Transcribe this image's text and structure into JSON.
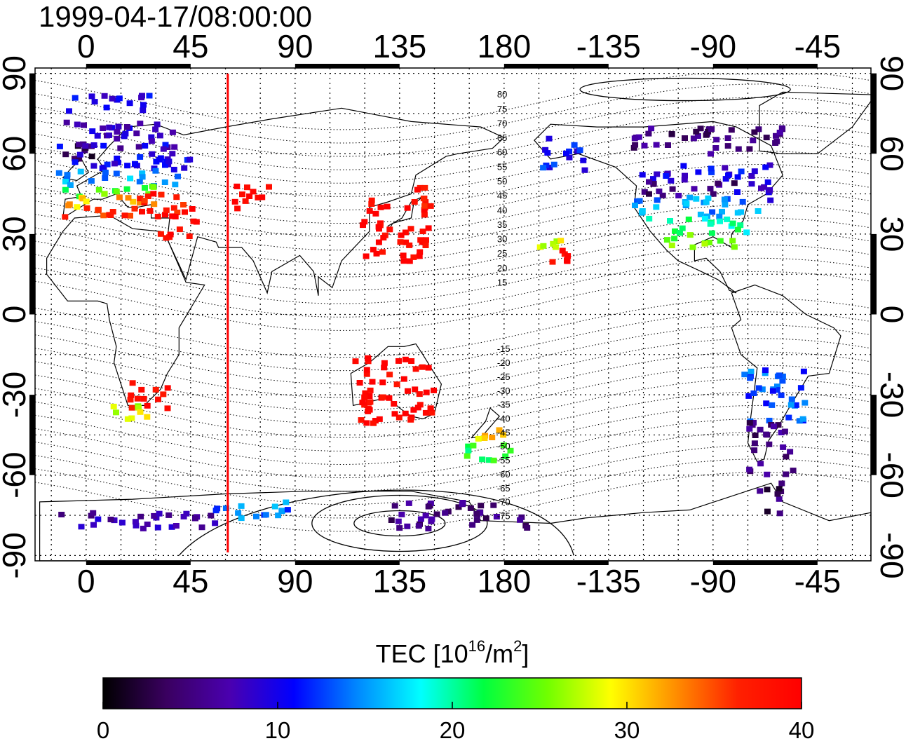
{
  "title": "1999-04-17/08:00:00",
  "map": {
    "projection": "equirectangular",
    "lon_range": [
      -22,
      338
    ],
    "lat_range": [
      -92,
      92
    ],
    "grid": "dotted, 15 degree spacing",
    "meridian_marker": {
      "lon": 61,
      "color": "#ff0000"
    }
  },
  "axes": {
    "x_ticks": [
      {
        "lon": 0,
        "label": "0"
      },
      {
        "lon": 45,
        "label": "45"
      },
      {
        "lon": 90,
        "label": "90"
      },
      {
        "lon": 135,
        "label": "135"
      },
      {
        "lon": 180,
        "label": "180"
      },
      {
        "lon": 225,
        "label": "-135"
      },
      {
        "lon": 270,
        "label": "-90"
      },
      {
        "lon": 315,
        "label": "-45"
      }
    ],
    "y_ticks": [
      {
        "lat": 90,
        "label": "90"
      },
      {
        "lat": 60,
        "label": "60"
      },
      {
        "lat": 30,
        "label": "30"
      },
      {
        "lat": 0,
        "label": "0"
      },
      {
        "lat": -30,
        "label": "-30"
      },
      {
        "lat": -60,
        "label": "-60"
      },
      {
        "lat": -90,
        "label": "-90"
      }
    ]
  },
  "contour_labels": {
    "north": [
      "80",
      "75",
      "70",
      "65",
      "60",
      "55",
      "50",
      "45",
      "40",
      "35",
      "30",
      "25",
      "20",
      "15"
    ],
    "south": [
      "-15",
      "-20",
      "-25",
      "-30",
      "-35",
      "-40",
      "-45",
      "-50",
      "-55",
      "-60",
      "-65",
      "-70",
      "-75"
    ]
  },
  "colorbar": {
    "title_main": "TEC  [10",
    "title_exp": "16",
    "title_mid": "/m",
    "title_exp2": "2",
    "title_end": "]",
    "min": 0,
    "max": 40,
    "ticks": [
      {
        "value": 0,
        "label": "0"
      },
      {
        "value": 10,
        "label": "10"
      },
      {
        "value": 20,
        "label": "20"
      },
      {
        "value": 30,
        "label": "30"
      },
      {
        "value": 40,
        "label": "40"
      }
    ],
    "colors": [
      "#000000",
      "#3a0060",
      "#4a00b0",
      "#0000ff",
      "#0088ff",
      "#00ffff",
      "#00ff40",
      "#70ff00",
      "#ffff00",
      "#ff9000",
      "#ff2000",
      "#ff0000"
    ]
  },
  "chart_data": {
    "type": "map",
    "color_scale": "TEC 0-40 (black-purple-blue-cyan-green-yellow-red)",
    "tec_regions": [
      {
        "lon_min": -20,
        "lon_max": 5,
        "lat_min": 58,
        "lat_max": 64,
        "tec": 3
      },
      {
        "lon_min": -10,
        "lon_max": 40,
        "lat_min": 62,
        "lat_max": 72,
        "tec": 8
      },
      {
        "lon_min": -12,
        "lon_max": 45,
        "lat_min": 54,
        "lat_max": 64,
        "tec": 10
      },
      {
        "lon_min": -12,
        "lon_max": 40,
        "lat_min": 48,
        "lat_max": 54,
        "tec": 15
      },
      {
        "lon_min": -12,
        "lon_max": 35,
        "lat_min": 44,
        "lat_max": 48,
        "tec": 24
      },
      {
        "lon_min": -12,
        "lon_max": 30,
        "lat_min": 40,
        "lat_max": 44,
        "tec": 31
      },
      {
        "lon_min": -10,
        "lon_max": 30,
        "lat_min": 36,
        "lat_max": 40,
        "tec": 36
      },
      {
        "lon_min": 20,
        "lon_max": 42,
        "lat_min": 36,
        "lat_max": 46,
        "tec": 38
      },
      {
        "lon_min": 30,
        "lon_max": 48,
        "lat_min": 28,
        "lat_max": 40,
        "tec": 40
      },
      {
        "lon_min": 62,
        "lon_max": 80,
        "lat_min": 38,
        "lat_max": 48,
        "tec": 40
      },
      {
        "lon_min": 118,
        "lon_max": 148,
        "lat_min": 20,
        "lat_max": 44,
        "tec": 40
      },
      {
        "lon_min": 142,
        "lon_max": 150,
        "lat_min": 40,
        "lat_max": 48,
        "tec": 38
      },
      {
        "lon_min": -10,
        "lon_max": 30,
        "lat_min": 76,
        "lat_max": 82,
        "tec": 10
      },
      {
        "lon_min": 195,
        "lon_max": 215,
        "lat_min": 54,
        "lat_max": 66,
        "tec": 11
      },
      {
        "lon_min": 235,
        "lon_max": 300,
        "lat_min": 60,
        "lat_max": 70,
        "tec": 5
      },
      {
        "lon_min": 235,
        "lon_max": 295,
        "lat_min": 50,
        "lat_max": 56,
        "tec": 10
      },
      {
        "lon_min": 240,
        "lon_max": 280,
        "lat_min": 44,
        "lat_max": 50,
        "tec": 5
      },
      {
        "lon_min": 280,
        "lon_max": 295,
        "lat_min": 42,
        "lat_max": 50,
        "tec": 9
      },
      {
        "lon_min": 236,
        "lon_max": 290,
        "lat_min": 36,
        "lat_max": 44,
        "tec": 15
      },
      {
        "lon_min": 240,
        "lon_max": 285,
        "lat_min": 30,
        "lat_max": 36,
        "tec": 20
      },
      {
        "lon_min": 250,
        "lon_max": 280,
        "lat_min": 24,
        "lat_max": 30,
        "tec": 25
      },
      {
        "lon_min": 283,
        "lon_max": 310,
        "lat_min": -40,
        "lat_max": -20,
        "tec": 13
      },
      {
        "lon_min": 285,
        "lon_max": 305,
        "lat_min": -60,
        "lat_max": -40,
        "tec": 5
      },
      {
        "lon_min": 290,
        "lon_max": 300,
        "lat_min": -75,
        "lat_max": -60,
        "tec": 4
      },
      {
        "lon_min": 115,
        "lon_max": 150,
        "lat_min": -42,
        "lat_max": -16,
        "tec": 40
      },
      {
        "lon_min": 165,
        "lon_max": 180,
        "lat_min": -48,
        "lat_max": -42,
        "tec": 30
      },
      {
        "lon_min": 163,
        "lon_max": 185,
        "lat_min": -55,
        "lat_max": -48,
        "tec": 22
      },
      {
        "lon_min": 15,
        "lon_max": 35,
        "lat_min": -35,
        "lat_max": -25,
        "tec": 38
      },
      {
        "lon_min": 10,
        "lon_max": 30,
        "lat_min": -40,
        "lat_max": -34,
        "tec": 28
      },
      {
        "lon_min": 200,
        "lon_max": 208,
        "lat_min": 18,
        "lat_max": 24,
        "tec": 40
      },
      {
        "lon_min": 195,
        "lon_max": 205,
        "lat_min": 24,
        "lat_max": 28,
        "tec": 28
      },
      {
        "lon_min": -15,
        "lon_max": 60,
        "lat_min": -80,
        "lat_max": -74,
        "tec": 7
      },
      {
        "lon_min": 55,
        "lon_max": 95,
        "lat_min": -76,
        "lat_max": -70,
        "tec": 14
      },
      {
        "lon_min": 130,
        "lon_max": 190,
        "lat_min": -80,
        "lat_max": -70,
        "tec": 5
      }
    ]
  }
}
